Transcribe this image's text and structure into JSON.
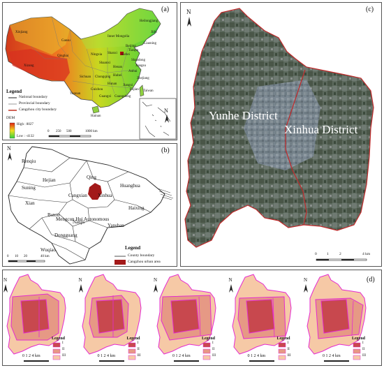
{
  "panel_a": {
    "label": "(a)",
    "provinces": [
      "Xinjiang",
      "Gansu",
      "Qinghai",
      "Xizang",
      "Inner Mongolia",
      "Heilongjiang",
      "Jilin",
      "Liaoning",
      "Beijing",
      "Tianjin",
      "Hebei",
      "Shanxi",
      "Ningxia",
      "Shaanxi",
      "Shandong",
      "Henan",
      "Sichuan",
      "Chongqing",
      "Hubei",
      "Anhui",
      "Jiangsu",
      "Zhejiang",
      "Hunan",
      "Jiangxi",
      "Guizhou",
      "Yunnan",
      "Guangxi",
      "Guangdong",
      "Fujian",
      "Taiwan",
      "Hainan"
    ],
    "legend": {
      "title": "Legend",
      "items": [
        "National boundary",
        "Provincial boundary",
        "Cangzhou city boundary"
      ],
      "dem_title": "DEM",
      "high": "High : 8027",
      "low": "Low : -4132"
    },
    "scale": {
      "ticks": [
        "0",
        "250",
        "500",
        "1000 km"
      ]
    },
    "north": "N"
  },
  "panel_b": {
    "label": "(b)",
    "counties": [
      "Renqiu",
      "Hejian",
      "Qing",
      "Suning",
      "Cangxian",
      "Xinhua",
      "Huanghua",
      "Xian",
      "Botou",
      "Mengcun Hui Autonomous",
      "Nanpi",
      "Haixing",
      "Yanshan",
      "Dongguang",
      "Wuqiao"
    ],
    "legend": {
      "title": "Legend",
      "items": [
        "County boundary",
        "Cangzhou urban area"
      ]
    },
    "scale": {
      "ticks": [
        "0",
        "10",
        "20",
        "40 km"
      ]
    },
    "north": "N"
  },
  "panel_c": {
    "label": "(c)",
    "districts": [
      "Yunhe District",
      "Xinhua District"
    ],
    "scale": {
      "ticks": [
        "0",
        "1",
        "2",
        "4 km"
      ]
    },
    "north": "N"
  },
  "panel_d": {
    "label": "(d)",
    "maps": [
      {
        "legend_title": "Legend",
        "rows": [
          "I",
          "II",
          "III"
        ],
        "scale": "0 1 2    4 km"
      },
      {
        "legend_title": "Legend",
        "rows": [
          "I",
          "II",
          "III"
        ],
        "scale": "0 1 2    4 km"
      },
      {
        "legend_title": "Legend",
        "rows": [
          "I",
          "II",
          "III"
        ],
        "scale": "0 1 2    4 km"
      },
      {
        "legend_title": "Legend",
        "rows": [
          "I",
          "II",
          "III"
        ],
        "scale": "0 1 2    4 km"
      },
      {
        "legend_title": "Legend",
        "rows": [
          "I",
          "II",
          "III"
        ],
        "scale": "0 1 2    4 km"
      }
    ],
    "north": "N"
  },
  "colors": {
    "urban": "#a31a1a",
    "zone1": "#c8484e",
    "zone2": "#e69985",
    "zone3": "#f6c9a6",
    "boundary": "#e42ad0"
  }
}
